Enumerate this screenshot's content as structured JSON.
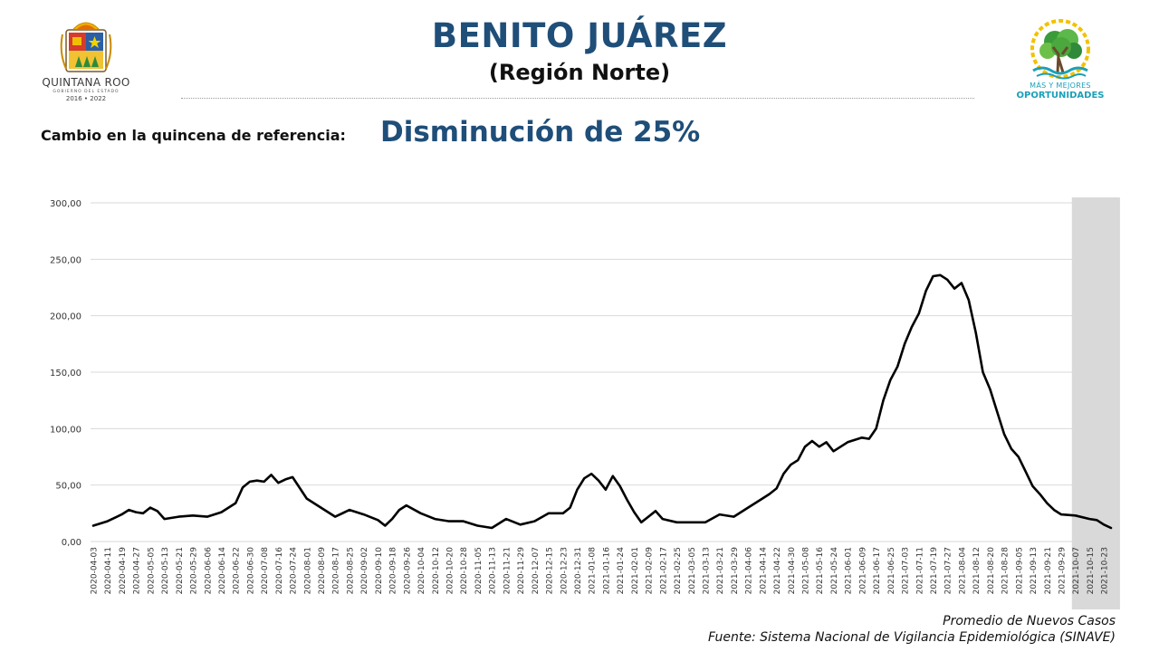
{
  "header": {
    "title": "BENITO JUÁREZ",
    "subtitle": "(Región Norte)",
    "change_label": "Cambio en la quincena de referencia:",
    "change_value": "Disminución de 25%"
  },
  "logo_left": {
    "org": "QUINTANA ROO",
    "org_sub": "GOBIERNO DEL ESTADO",
    "years": "2016 • 2022"
  },
  "logo_right": {
    "slogan1": "MÁS Y MEJORES",
    "slogan2": "OPORTUNIDADES"
  },
  "footer": {
    "series_label": "Promedio de Nuevos Casos",
    "source": "Fuente: Sistema Nacional de Vigilancia Epidemiológica (SINAVE)"
  },
  "colors": {
    "title": "#1f4e79",
    "line": "#000000",
    "shade": "#d9d9d9",
    "grid": "#d9d9d9",
    "logo_teal": "#1aa0b8"
  },
  "chart_data": {
    "type": "line",
    "ylim": [
      0,
      300
    ],
    "ytick_values": [
      0,
      50,
      100,
      150,
      200,
      250,
      300
    ],
    "ytick_labels": [
      "0,00",
      "50,00",
      "100,00",
      "150,00",
      "200,00",
      "250,00",
      "300,00"
    ],
    "xlim": [
      "2020-04-03",
      "2021-10-27"
    ],
    "xtick_labels": [
      "2020-04-03",
      "2020-04-11",
      "2020-04-19",
      "2020-04-27",
      "2020-05-05",
      "2020-05-13",
      "2020-05-21",
      "2020-05-29",
      "2020-06-06",
      "2020-06-14",
      "2020-06-22",
      "2020-06-30",
      "2020-07-08",
      "2020-07-16",
      "2020-07-24",
      "2020-08-01",
      "2020-08-09",
      "2020-08-17",
      "2020-08-25",
      "2020-09-02",
      "2020-09-10",
      "2020-09-18",
      "2020-09-26",
      "2020-10-04",
      "2020-10-12",
      "2020-10-20",
      "2020-10-28",
      "2020-11-05",
      "2020-11-13",
      "2020-11-21",
      "2020-11-29",
      "2020-12-07",
      "2020-12-15",
      "2020-12-23",
      "2020-12-31",
      "2021-01-08",
      "2021-01-16",
      "2021-01-24",
      "2021-02-01",
      "2021-02-09",
      "2021-02-17",
      "2021-02-25",
      "2021-03-05",
      "2021-03-13",
      "2021-03-21",
      "2021-03-29",
      "2021-04-06",
      "2021-04-14",
      "2021-04-22",
      "2021-04-30",
      "2021-05-08",
      "2021-05-16",
      "2021-05-24",
      "2021-06-01",
      "2021-06-09",
      "2021-06-17",
      "2021-06-25",
      "2021-07-03",
      "2021-07-11",
      "2021-07-19",
      "2021-07-27",
      "2021-08-04",
      "2021-08-12",
      "2021-08-20",
      "2021-08-28",
      "2021-09-05",
      "2021-09-13",
      "2021-09-21",
      "2021-09-29",
      "2021-10-07",
      "2021-10-15",
      "2021-10-23"
    ],
    "shaded_range": [
      "2021-10-05",
      "2021-10-29"
    ],
    "grid": "horizontal",
    "series": [
      {
        "x": [
          "2020-04-03",
          "2020-04-11",
          "2020-04-19",
          "2020-04-23",
          "2020-04-27",
          "2020-05-01",
          "2020-05-05",
          "2020-05-09",
          "2020-05-13",
          "2020-05-21",
          "2020-05-29",
          "2020-06-06",
          "2020-06-14",
          "2020-06-22",
          "2020-06-26",
          "2020-06-30",
          "2020-07-04",
          "2020-07-08",
          "2020-07-12",
          "2020-07-16",
          "2020-07-20",
          "2020-07-24",
          "2020-08-01",
          "2020-08-09",
          "2020-08-17",
          "2020-08-25",
          "2020-09-02",
          "2020-09-10",
          "2020-09-14",
          "2020-09-18",
          "2020-09-22",
          "2020-09-26",
          "2020-10-04",
          "2020-10-12",
          "2020-10-20",
          "2020-10-28",
          "2020-11-05",
          "2020-11-13",
          "2020-11-21",
          "2020-11-29",
          "2020-12-07",
          "2020-12-15",
          "2020-12-23",
          "2020-12-27",
          "2020-12-31",
          "2021-01-04",
          "2021-01-08",
          "2021-01-12",
          "2021-01-16",
          "2021-01-20",
          "2021-01-24",
          "2021-01-28",
          "2021-02-01",
          "2021-02-05",
          "2021-02-09",
          "2021-02-13",
          "2021-02-17",
          "2021-02-25",
          "2021-03-05",
          "2021-03-13",
          "2021-03-21",
          "2021-03-29",
          "2021-04-06",
          "2021-04-14",
          "2021-04-18",
          "2021-04-22",
          "2021-04-26",
          "2021-04-30",
          "2021-05-04",
          "2021-05-08",
          "2021-05-12",
          "2021-05-16",
          "2021-05-20",
          "2021-05-24",
          "2021-06-01",
          "2021-06-09",
          "2021-06-13",
          "2021-06-17",
          "2021-06-21",
          "2021-06-25",
          "2021-06-29",
          "2021-07-03",
          "2021-07-07",
          "2021-07-11",
          "2021-07-15",
          "2021-07-19",
          "2021-07-23",
          "2021-07-27",
          "2021-07-31",
          "2021-08-04",
          "2021-08-08",
          "2021-08-12",
          "2021-08-16",
          "2021-08-20",
          "2021-08-24",
          "2021-08-28",
          "2021-09-01",
          "2021-09-05",
          "2021-09-09",
          "2021-09-13",
          "2021-09-17",
          "2021-09-21",
          "2021-09-25",
          "2021-09-29",
          "2021-10-07",
          "2021-10-15",
          "2021-10-19",
          "2021-10-23",
          "2021-10-27"
        ],
        "y": [
          14,
          18,
          24,
          28,
          26,
          25,
          30,
          27,
          20,
          22,
          23,
          22,
          26,
          34,
          48,
          53,
          54,
          53,
          59,
          52,
          55,
          57,
          38,
          30,
          22,
          28,
          24,
          19,
          14,
          20,
          28,
          32,
          25,
          20,
          18,
          18,
          14,
          12,
          20,
          15,
          18,
          25,
          25,
          30,
          46,
          56,
          60,
          54,
          46,
          58,
          49,
          37,
          26,
          17,
          22,
          27,
          20,
          17,
          17,
          17,
          24,
          22,
          30,
          38,
          42,
          47,
          60,
          68,
          72,
          84,
          89,
          84,
          88,
          80,
          88,
          92,
          91,
          100,
          125,
          143,
          155,
          175,
          190,
          202,
          222,
          235,
          236,
          232,
          224,
          229,
          214,
          185,
          150,
          135,
          115,
          95,
          82,
          75,
          62,
          49,
          42,
          34,
          28,
          24,
          23,
          20,
          19,
          15,
          12
        ]
      }
    ]
  }
}
